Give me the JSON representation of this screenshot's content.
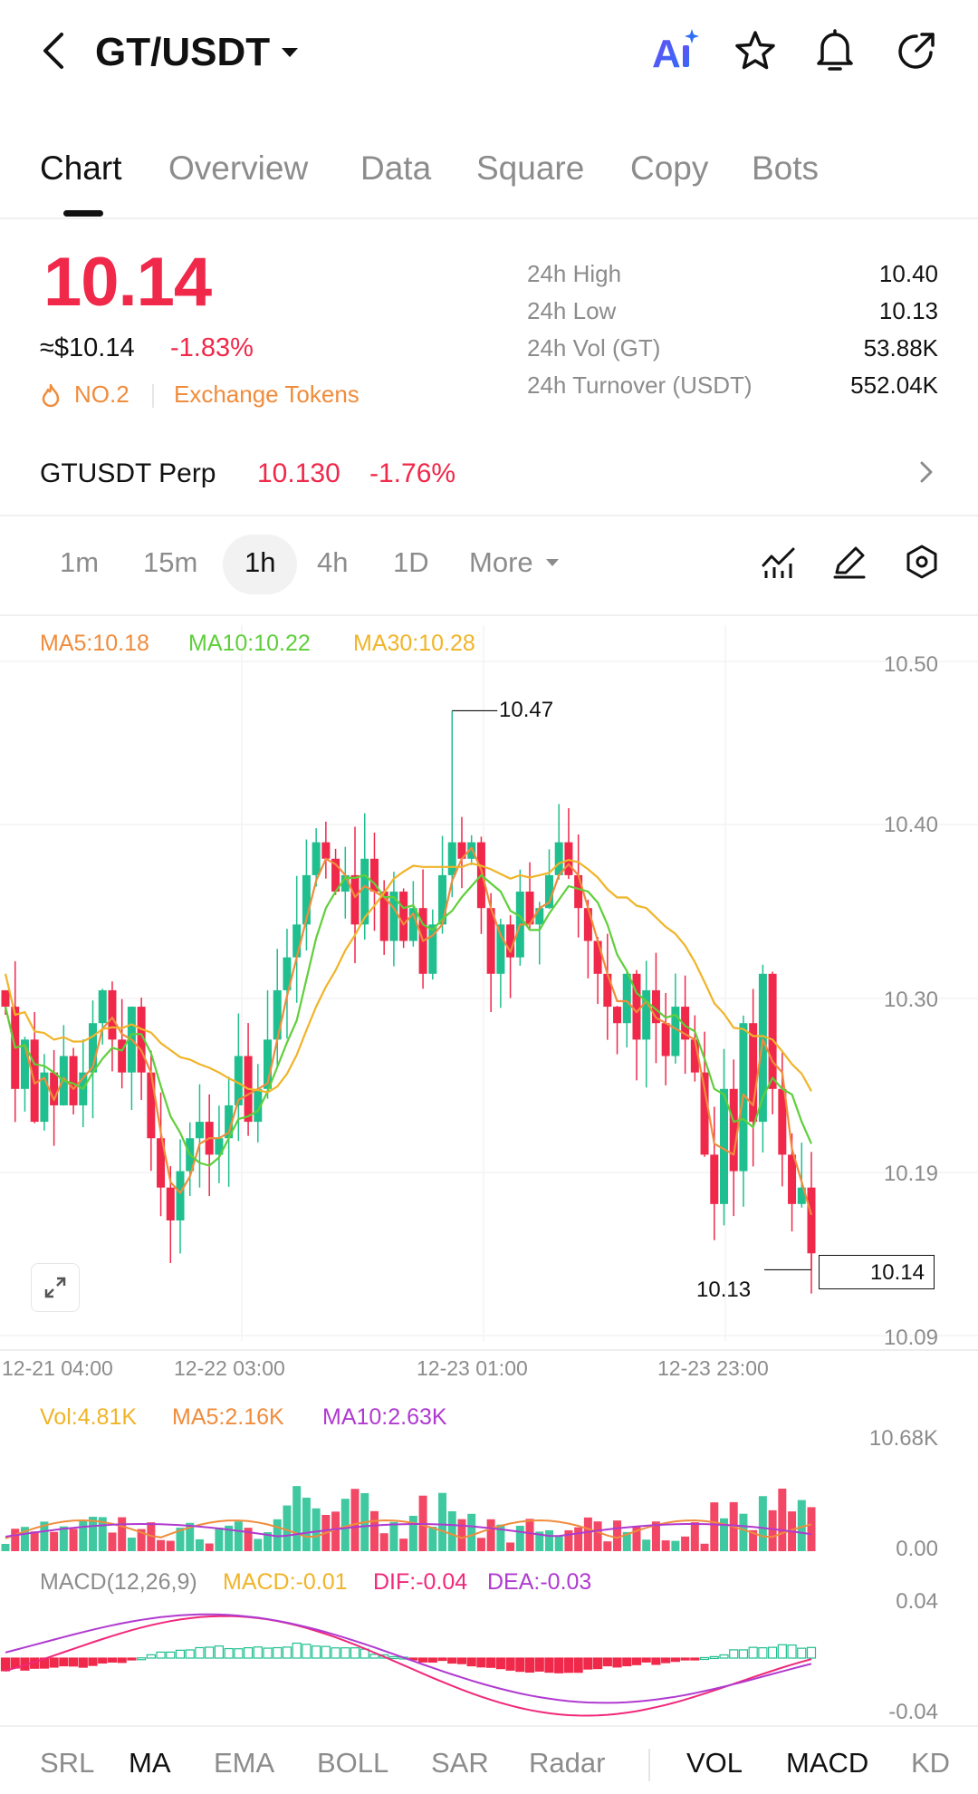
{
  "header": {
    "pair": "GT/USDT",
    "ai_label": "AI"
  },
  "tabs": [
    "Chart",
    "Overview",
    "Data",
    "Square",
    "Copy",
    "Bots"
  ],
  "price": {
    "last": "10.14",
    "usd": "≈$10.14",
    "change": "-1.83%",
    "rank": "NO.2",
    "category": "Exchange Tokens"
  },
  "stats": [
    {
      "label": "24h  High",
      "value": "10.40"
    },
    {
      "label": "24h  Low",
      "value": "10.13"
    },
    {
      "label": "24h  Vol (GT)",
      "value": "53.88K"
    },
    {
      "label": "24h  Turnover (USDT)",
      "value": "552.04K"
    }
  ],
  "perp": {
    "name": "GTUSDT Perp",
    "price": "10.130",
    "change": "-1.76%"
  },
  "intervals": [
    "1m",
    "15m",
    "1h",
    "4h",
    "1D",
    "More"
  ],
  "active_interval": "1h",
  "main_legend": {
    "ma5": "MA5:10.18",
    "ma10": "MA10:10.22",
    "ma30": "MA30:10.28"
  },
  "price_axis": [
    "10.50",
    "10.40",
    "10.30",
    "10.19",
    "10.09"
  ],
  "annotations": {
    "high": "10.47",
    "low": "10.13",
    "current": "10.14"
  },
  "time_axis": [
    "12-21 04:00",
    "12-22 03:00",
    "12-23 01:00",
    "12-23 23:00"
  ],
  "vol_legend": {
    "vol": "Vol:4.81K",
    "ma5": "MA5:2.16K",
    "ma10": "MA10:2.63K"
  },
  "vol_axis": [
    "10.68K",
    "0.00"
  ],
  "macd_legend": {
    "name": "MACD(12,26,9)",
    "macd": "MACD:-0.01",
    "dif": "DIF:-0.04",
    "dea": "DEA:-0.03"
  },
  "macd_axis": [
    "0.04",
    "-0.04"
  ],
  "indicator_tabs": [
    "SRL",
    "MA",
    "EMA",
    "BOLL",
    "SAR",
    "Radar",
    "VOL",
    "MACD",
    "KD"
  ],
  "colors": {
    "up": "#1fbf8f",
    "down": "#f0284a",
    "ma5": "#f08c3c",
    "ma10": "#5fcf3a",
    "ma30": "#f0b429",
    "macd_purple": "#b03ad0",
    "macd_pink": "#f0287a"
  },
  "chart_data": {
    "type": "candlestick",
    "ylim": [
      10.09,
      10.5
    ],
    "series_range": {
      "high": 10.47,
      "low": 10.13,
      "last": 10.14
    }
  }
}
